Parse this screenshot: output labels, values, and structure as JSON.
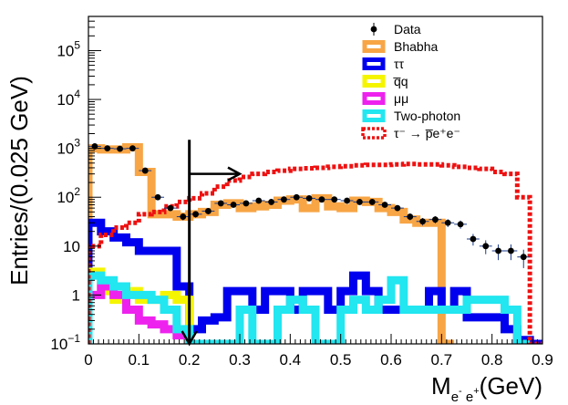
{
  "chart_data": {
    "type": "histogram",
    "ylabel": "Entries/(0.025 GeV)",
    "xlabel": {
      "main": "M",
      "sub1": "e",
      "sup1": "-",
      "sub2": " e",
      "sup2": "+",
      "unit": "(GeV)"
    },
    "xlim": [
      0,
      0.9
    ],
    "ylim": [
      0.1,
      500000
    ],
    "yscale": "log",
    "x_ticks": [
      {
        "value": 0,
        "label": "0"
      },
      {
        "value": 0.1,
        "label": "0.1"
      },
      {
        "value": 0.2,
        "label": "0.2"
      },
      {
        "value": 0.3,
        "label": "0.3"
      },
      {
        "value": 0.4,
        "label": "0.4"
      },
      {
        "value": 0.5,
        "label": "0.5"
      },
      {
        "value": 0.6,
        "label": "0.6"
      },
      {
        "value": 0.7,
        "label": "0.7"
      },
      {
        "value": 0.8,
        "label": "0.8"
      },
      {
        "value": 0.9,
        "label": "0.9"
      }
    ],
    "y_ticks": [
      {
        "value": 0.1,
        "base": "10",
        "exp": "−1"
      },
      {
        "value": 1,
        "base": "1",
        "exp": ""
      },
      {
        "value": 10,
        "base": "10",
        "exp": ""
      },
      {
        "value": 100,
        "base": "10",
        "exp": "2"
      },
      {
        "value": 1000,
        "base": "10",
        "exp": "3"
      },
      {
        "value": 10000,
        "base": "10",
        "exp": "4"
      },
      {
        "value": 100000,
        "base": "10",
        "exp": "5"
      }
    ],
    "bin_width": 0.025,
    "series": [
      {
        "name": "Bhabha",
        "legend": "Bhabha",
        "color": "#f7a545",
        "style": "thick",
        "x0": 0.0,
        "values": [
          1000,
          950,
          950,
          1050,
          330,
          45,
          45,
          40,
          45,
          50,
          70,
          75,
          60,
          65,
          70,
          85,
          90,
          60,
          95,
          65,
          60,
          85,
          80,
          60,
          50,
          35,
          30,
          30,
          0.1
        ]
      },
      {
        "name": "tautau",
        "legend": "ττ",
        "color": "#0000ee",
        "style": "thick",
        "x0": 0.0,
        "values": [
          30,
          20,
          15,
          12,
          8,
          8,
          8,
          1.5,
          0.2,
          0.3,
          0.35,
          1.2,
          1.2,
          0.5,
          1.2,
          1.2,
          0.5,
          1.2,
          1.2,
          0.5,
          1.2,
          2.5,
          1.2,
          0.5,
          0.5,
          0.5,
          0.5,
          1.2,
          0.5,
          1.2,
          0.35,
          0.35,
          0.35,
          0.2,
          0.12,
          0.1
        ]
      },
      {
        "name": "qqbar",
        "legend": "q̅q",
        "color": "#f5f500",
        "style": "thick",
        "x0": 0.0,
        "values": [
          3,
          1.2,
          0.8,
          1.2,
          0.8,
          0.8,
          1.0,
          0.8,
          0.1
        ]
      },
      {
        "name": "mumu",
        "legend": "μμ",
        "color": "#ee22ee",
        "style": "thick",
        "x0": 0.0,
        "values": [
          1.0,
          1.5,
          1.0,
          0.5,
          0.3,
          0.25,
          0.2,
          0.15
        ]
      },
      {
        "name": "two-photon",
        "legend": "Two-photon",
        "color": "#22e6f0",
        "style": "thick",
        "x0": 0.0,
        "values": [
          2.5,
          2.0,
          1.5,
          1.0,
          1.0,
          0.8,
          0.5,
          0.2,
          0.1,
          0.1,
          0.1,
          0.1,
          0.5,
          0.1,
          0.1,
          0.5,
          0.8,
          0.5,
          0.1,
          0.1,
          0.5,
          0.8,
          0.5,
          0.8,
          2.0,
          0.5,
          0.5,
          0.5,
          0.5,
          0.5,
          0.8,
          0.8,
          0.8,
          0.5,
          0.1
        ]
      },
      {
        "name": "signal",
        "legend": "τ⁻ → p̅e⁺e⁻",
        "color": "#ee1111",
        "style": "dashed",
        "x0": 0.0,
        "values": [
          10,
          17,
          24,
          30,
          45,
          50,
          65,
          80,
          95,
          120,
          165,
          220,
          260,
          300,
          330,
          350,
          380,
          390,
          400,
          420,
          430,
          450,
          460,
          460,
          470,
          480,
          470,
          470,
          450,
          420,
          400,
          380,
          330,
          300,
          100,
          0.1
        ]
      }
    ],
    "data_points": {
      "name": "Data",
      "legend": "Data",
      "x": [
        0.0125,
        0.0375,
        0.0625,
        0.0875,
        0.1125,
        0.1375,
        0.1625,
        0.1875,
        0.2125,
        0.2375,
        0.2625,
        0.2875,
        0.3125,
        0.3375,
        0.3625,
        0.3875,
        0.4125,
        0.4375,
        0.4625,
        0.4875,
        0.5125,
        0.5375,
        0.5625,
        0.5875,
        0.6125,
        0.6375,
        0.6625,
        0.6875,
        0.7125,
        0.7375,
        0.7625,
        0.7875,
        0.8125,
        0.8375,
        0.8625
      ],
      "y": [
        1100,
        1000,
        980,
        1000,
        350,
        100,
        60,
        40,
        45,
        52,
        75,
        70,
        75,
        85,
        80,
        90,
        100,
        95,
        90,
        90,
        85,
        80,
        80,
        70,
        60,
        40,
        32,
        35,
        30,
        28,
        14,
        10,
        8,
        8,
        6
      ]
    },
    "annotations": [
      {
        "type": "cut-arrow",
        "x": 0.2,
        "from_y": 1500,
        "to_y": 0.1,
        "direction": "down"
      },
      {
        "type": "region-arrow",
        "x_start": 0.2,
        "x_end": 0.3,
        "y": 300,
        "direction": "right"
      }
    ]
  }
}
